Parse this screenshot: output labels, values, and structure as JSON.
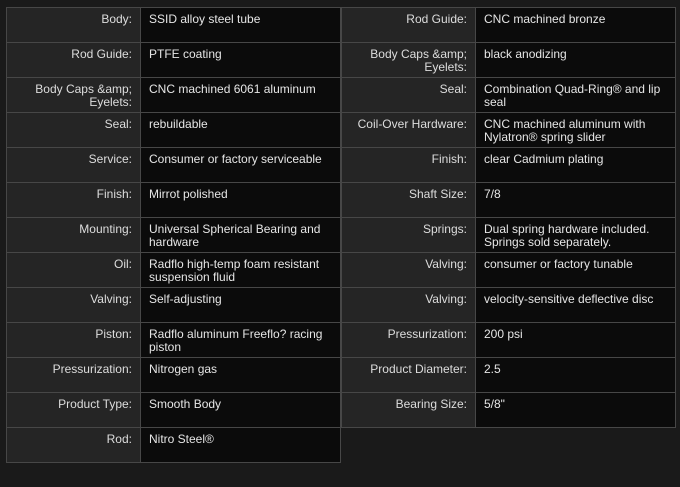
{
  "left_specs": [
    {
      "label": "Body:",
      "value": "SSID alloy steel tube"
    },
    {
      "label": "Rod Guide:",
      "value": "PTFE coating"
    },
    {
      "label": "Body Caps &amp; Eyelets:",
      "value": "CNC machined 6061 aluminum"
    },
    {
      "label": "Seal:",
      "value": "rebuildable"
    },
    {
      "label": "Service:",
      "value": "Consumer or factory serviceable"
    },
    {
      "label": "Finish:",
      "value": "Mirrot polished"
    },
    {
      "label": "Mounting:",
      "value": "Universal Spherical Bearing and hardware"
    },
    {
      "label": "Oil:",
      "value": "Radflo high-temp foam resistant suspension fluid"
    },
    {
      "label": "Valving:",
      "value": "Self-adjusting"
    },
    {
      "label": "Piston:",
      "value": "Radflo aluminum Freeflo? racing piston"
    },
    {
      "label": "Pressurization:",
      "value": "Nitrogen gas"
    },
    {
      "label": "Product Type:",
      "value": "Smooth Body"
    },
    {
      "label": "Rod:",
      "value": "Nitro Steel®"
    }
  ],
  "right_specs": [
    {
      "label": "Rod Guide:",
      "value": "CNC machined bronze"
    },
    {
      "label": "Body Caps &amp; Eyelets:",
      "value": "black anodizing"
    },
    {
      "label": "Seal:",
      "value": "Combination Quad-Ring® and lip seal"
    },
    {
      "label": "Coil-Over Hardware:",
      "value": "CNC machined aluminum with Nylatron® spring slider"
    },
    {
      "label": "Finish:",
      "value": "clear Cadmium plating"
    },
    {
      "label": "Shaft Size:",
      "value": "7/8"
    },
    {
      "label": "Springs:",
      "value": "Dual spring hardware included. Springs sold separately."
    },
    {
      "label": "Valving:",
      "value": "consumer or factory tunable"
    },
    {
      "label": "Valving:",
      "value": "velocity-sensitive deflective disc"
    },
    {
      "label": "Pressurization:",
      "value": "200 psi"
    },
    {
      "label": "Product Diameter:",
      "value": "2.5"
    },
    {
      "label": "Bearing Size:",
      "value": "5/8\""
    }
  ]
}
